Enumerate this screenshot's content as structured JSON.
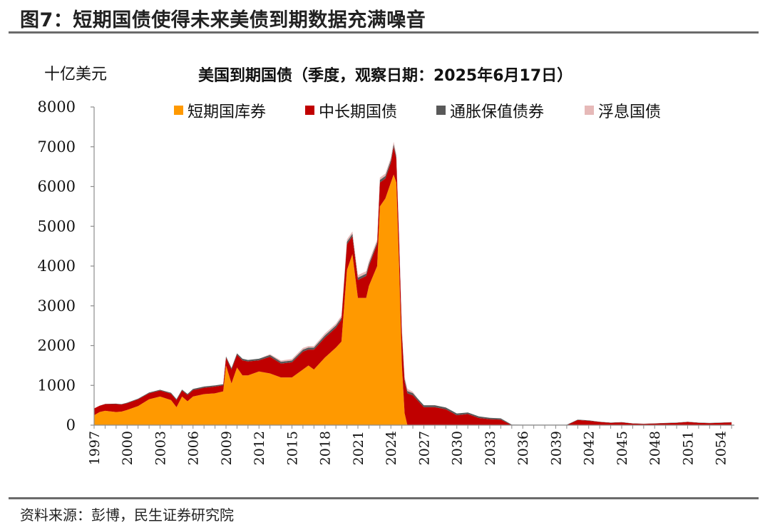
{
  "figure": {
    "title": "图7：短期国债使得未来美债到期数据充满噪音",
    "source": "资料来源：彭博，民生证券研究院"
  },
  "chart_data": {
    "type": "area",
    "stacked": true,
    "title": "美国到期国债（季度，观察日期：2025年6月17日）",
    "ylabel": "十亿美元",
    "ylim": [
      0,
      8000
    ],
    "yticks": [
      "0",
      "1000",
      "2000",
      "3000",
      "4000",
      "5000",
      "6000",
      "7000",
      "8000"
    ],
    "xlim": [
      1997,
      2055.25
    ],
    "xticks": [
      "1997",
      "2000",
      "2003",
      "2006",
      "2009",
      "2012",
      "2015",
      "2018",
      "2021",
      "2024",
      "2027",
      "2030",
      "2033",
      "2036",
      "2039",
      "2042",
      "2045",
      "2048",
      "2051",
      "2054"
    ],
    "legend_position": "top",
    "x": [
      1997,
      1997.5,
      1998,
      1999,
      1999.5,
      2000,
      2001,
      2002,
      2003,
      2004,
      2004.5,
      2005,
      2005.5,
      2006,
      2007,
      2008,
      2008.75,
      2009,
      2009.5,
      2010,
      2010.5,
      2011,
      2012,
      2013,
      2014,
      2015,
      2016,
      2016.5,
      2017,
      2018,
      2019,
      2019.5,
      2020,
      2020.5,
      2021,
      2021.75,
      2022,
      2022.75,
      2023,
      2023.5,
      2024,
      2024.25,
      2024.5,
      2024.75,
      2025,
      2025.25,
      2025.5,
      2026,
      2026.5,
      2027,
      2028,
      2029,
      2030,
      2031,
      2032,
      2033,
      2034,
      2035,
      2036,
      2037,
      2038,
      2039,
      2040,
      2041,
      2042,
      2043,
      2044,
      2045,
      2046,
      2047,
      2048,
      2049,
      2050,
      2051,
      2052,
      2053,
      2054,
      2055
    ],
    "series": [
      {
        "name": "短期国库券",
        "color": "#FF9900",
        "values": [
          250,
          330,
          360,
          330,
          340,
          380,
          480,
          650,
          720,
          630,
          450,
          720,
          600,
          720,
          780,
          800,
          850,
          1500,
          1050,
          1450,
          1250,
          1250,
          1350,
          1300,
          1200,
          1200,
          1400,
          1500,
          1400,
          1700,
          1950,
          2100,
          3900,
          4300,
          3200,
          3200,
          3500,
          4000,
          5500,
          5700,
          6100,
          6300,
          6100,
          4000,
          1500,
          300,
          0,
          0,
          0,
          0,
          0,
          0,
          0,
          0,
          0,
          0,
          0,
          0,
          0,
          0,
          0,
          0,
          0,
          0,
          0,
          0,
          0,
          0,
          0,
          0,
          0,
          0,
          0,
          0,
          0,
          0,
          0,
          0
        ]
      },
      {
        "name": "中长期国债",
        "color": "#C00000",
        "values": [
          170,
          160,
          170,
          200,
          180,
          170,
          170,
          150,
          150,
          160,
          180,
          150,
          160,
          160,
          160,
          170,
          150,
          200,
          350,
          320,
          380,
          350,
          280,
          420,
          350,
          380,
          450,
          400,
          500,
          500,
          500,
          550,
          650,
          450,
          450,
          550,
          500,
          550,
          600,
          500,
          500,
          700,
          600,
          650,
          800,
          800,
          800,
          750,
          600,
          450,
          450,
          400,
          250,
          280,
          180,
          150,
          140,
          0,
          0,
          0,
          0,
          0,
          0,
          130,
          110,
          80,
          60,
          70,
          40,
          30,
          40,
          50,
          60,
          80,
          60,
          50,
          60,
          70
        ]
      },
      {
        "name": "通胀保值债券",
        "color": "#595959",
        "values": [
          0,
          0,
          5,
          10,
          10,
          15,
          15,
          20,
          20,
          25,
          25,
          25,
          25,
          30,
          30,
          30,
          30,
          30,
          35,
          35,
          40,
          40,
          40,
          45,
          45,
          45,
          50,
          50,
          50,
          55,
          55,
          55,
          60,
          60,
          60,
          60,
          60,
          60,
          65,
          65,
          65,
          65,
          60,
          60,
          60,
          60,
          55,
          55,
          50,
          50,
          50,
          45,
          45,
          40,
          40,
          35,
          30,
          15,
          10,
          10,
          10,
          10,
          10,
          10,
          10,
          5,
          5,
          5,
          5,
          5,
          5,
          5,
          5,
          5,
          5,
          5,
          5,
          5
        ]
      },
      {
        "name": "浮息国债",
        "color": "#E6B9B8",
        "values": [
          0,
          0,
          0,
          0,
          0,
          0,
          0,
          0,
          0,
          0,
          0,
          0,
          0,
          0,
          0,
          0,
          0,
          0,
          0,
          0,
          0,
          0,
          0,
          20,
          30,
          40,
          40,
          40,
          40,
          50,
          50,
          50,
          60,
          60,
          60,
          60,
          60,
          60,
          60,
          60,
          60,
          60,
          60,
          60,
          60,
          60,
          60,
          30,
          0,
          0,
          0,
          0,
          0,
          0,
          0,
          0,
          0,
          0,
          0,
          0,
          0,
          0,
          0,
          0,
          0,
          0,
          0,
          0,
          0,
          0,
          0,
          0,
          0,
          0,
          0,
          0,
          0,
          0
        ]
      }
    ]
  }
}
